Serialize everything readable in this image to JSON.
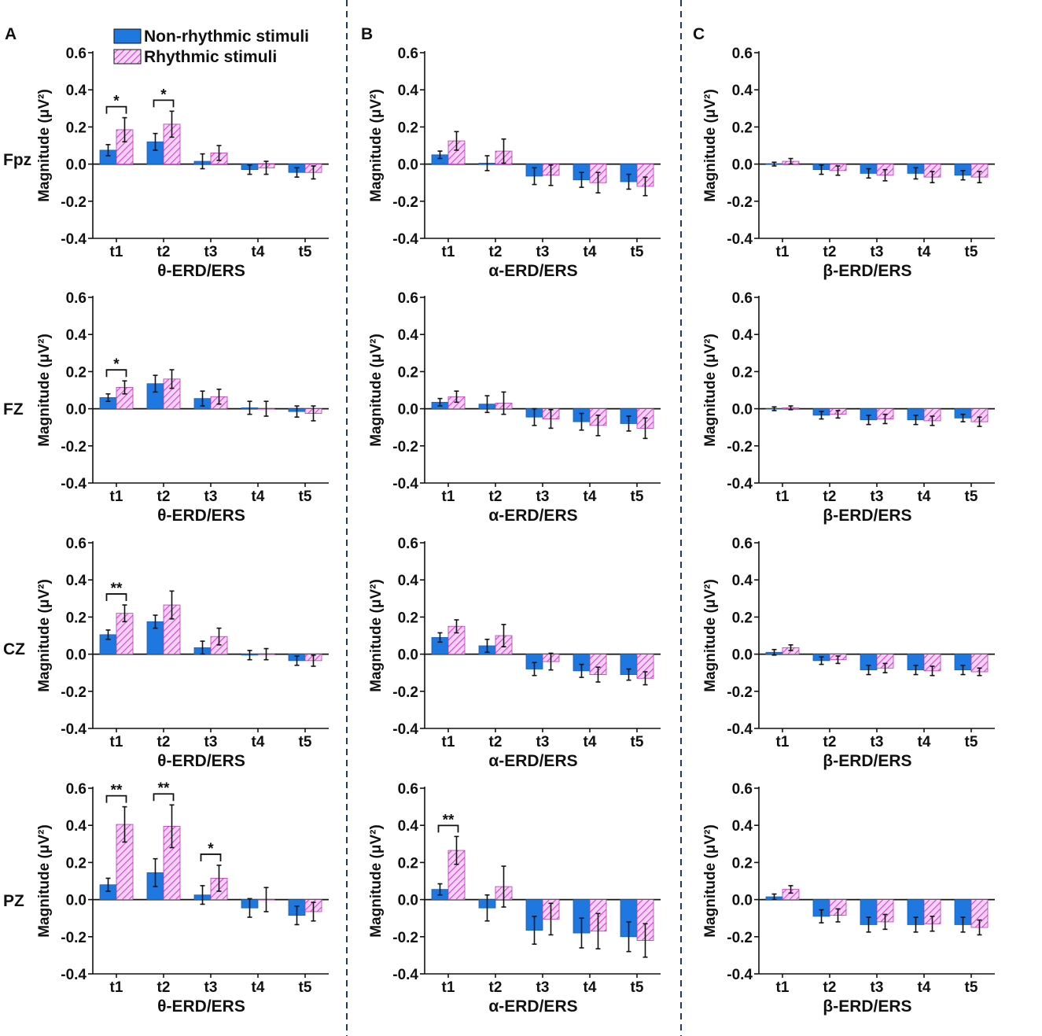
{
  "figure": {
    "panel_letters": [
      "A",
      "B",
      "C"
    ],
    "row_labels": [
      "Fpz",
      "FZ",
      "CZ",
      "PZ"
    ],
    "legend": [
      {
        "label": "Non-rhythmic stimuli",
        "pattern": "solid",
        "color": "#1f77e0"
      },
      {
        "label": "Rhythmic stimuli",
        "pattern": "hatched",
        "color": "#e05ce0"
      }
    ],
    "colors": {
      "non_rhythmic": "#1f77e0",
      "rhythmic_fill": "#f3c6f3",
      "rhythmic_hatch": "#d63fd6",
      "divider": "#1f3a66"
    }
  },
  "chart_data": [
    {
      "type": "bar",
      "panel": "A",
      "row": "Fpz",
      "xlabel": "θ-ERD/ERS",
      "ylabel": "Magnitude (μV²)",
      "ylim": [
        -0.4,
        0.6
      ],
      "yticks": [
        "0.6",
        "0.4",
        "0.2",
        "0.0",
        "-0.2",
        "-0.4"
      ],
      "categories": [
        "t1",
        "t2",
        "t3",
        "t4",
        "t5"
      ],
      "series": [
        {
          "name": "Non-rhythmic stimuli",
          "values": [
            0.075,
            0.12,
            0.015,
            -0.03,
            -0.045
          ],
          "errors": [
            0.03,
            0.045,
            0.04,
            0.025,
            0.025
          ]
        },
        {
          "name": "Rhythmic stimuli",
          "values": [
            0.185,
            0.215,
            0.06,
            -0.02,
            -0.045
          ],
          "errors": [
            0.065,
            0.07,
            0.04,
            0.035,
            0.035
          ]
        }
      ],
      "significance": [
        {
          "category": "t1",
          "label": "*"
        },
        {
          "category": "t2",
          "label": "*"
        }
      ]
    },
    {
      "type": "bar",
      "panel": "B",
      "row": "Fpz",
      "xlabel": "α-ERD/ERS",
      "ylabel": "Magnitude (μV²)",
      "ylim": [
        -0.4,
        0.6
      ],
      "yticks": [
        "0.6",
        "0.4",
        "0.2",
        "0.0",
        "-0.2",
        "-0.4"
      ],
      "categories": [
        "t1",
        "t2",
        "t3",
        "t4",
        "t5"
      ],
      "series": [
        {
          "name": "Non-rhythmic stimuli",
          "values": [
            0.05,
            0.005,
            -0.065,
            -0.085,
            -0.095
          ],
          "errors": [
            0.02,
            0.04,
            0.045,
            0.04,
            0.04
          ]
        },
        {
          "name": "Rhythmic stimuli",
          "values": [
            0.125,
            0.07,
            -0.06,
            -0.1,
            -0.12
          ],
          "errors": [
            0.05,
            0.065,
            0.055,
            0.055,
            0.05
          ]
        }
      ],
      "significance": []
    },
    {
      "type": "bar",
      "panel": "C",
      "row": "Fpz",
      "xlabel": "β-ERD/ERS",
      "ylabel": "Magnitude (μV²)",
      "ylim": [
        -0.4,
        0.6
      ],
      "yticks": [
        "0.6",
        "0.4",
        "0.2",
        "0.0",
        "-0.2",
        "-0.4"
      ],
      "categories": [
        "t1",
        "t2",
        "t3",
        "t4",
        "t5"
      ],
      "series": [
        {
          "name": "Non-rhythmic stimuli",
          "values": [
            0.0,
            -0.03,
            -0.05,
            -0.05,
            -0.06
          ],
          "errors": [
            0.01,
            0.025,
            0.025,
            0.03,
            0.025
          ]
        },
        {
          "name": "Rhythmic stimuli",
          "values": [
            0.015,
            -0.035,
            -0.06,
            -0.07,
            -0.07
          ],
          "errors": [
            0.015,
            0.025,
            0.03,
            0.03,
            0.03
          ]
        }
      ],
      "significance": []
    },
    {
      "type": "bar",
      "panel": "A",
      "row": "FZ",
      "xlabel": "θ-ERD/ERS",
      "ylabel": "Magnitude (μV²)",
      "ylim": [
        -0.4,
        0.6
      ],
      "yticks": [
        "0.6",
        "0.4",
        "0.2",
        "0.0",
        "-0.2",
        "-0.4"
      ],
      "categories": [
        "t1",
        "t2",
        "t3",
        "t4",
        "t5"
      ],
      "series": [
        {
          "name": "Non-rhythmic stimuli",
          "values": [
            0.06,
            0.135,
            0.055,
            0.005,
            -0.015
          ],
          "errors": [
            0.02,
            0.045,
            0.04,
            0.035,
            0.03
          ]
        },
        {
          "name": "Rhythmic stimuli",
          "values": [
            0.115,
            0.16,
            0.065,
            0.0,
            -0.025
          ],
          "errors": [
            0.035,
            0.05,
            0.04,
            0.04,
            0.04
          ]
        }
      ],
      "significance": [
        {
          "category": "t1",
          "label": "*"
        }
      ]
    },
    {
      "type": "bar",
      "panel": "B",
      "row": "FZ",
      "xlabel": "α-ERD/ERS",
      "ylabel": "Magnitude (μV²)",
      "ylim": [
        -0.4,
        0.6
      ],
      "yticks": [
        "0.6",
        "0.4",
        "0.2",
        "0.0",
        "-0.2",
        "-0.4"
      ],
      "categories": [
        "t1",
        "t2",
        "t3",
        "t4",
        "t5"
      ],
      "series": [
        {
          "name": "Non-rhythmic stimuli",
          "values": [
            0.035,
            0.025,
            -0.045,
            -0.07,
            -0.08
          ],
          "errors": [
            0.02,
            0.045,
            0.045,
            0.045,
            0.04
          ]
        },
        {
          "name": "Rhythmic stimuli",
          "values": [
            0.065,
            0.03,
            -0.055,
            -0.09,
            -0.105
          ],
          "errors": [
            0.03,
            0.06,
            0.05,
            0.055,
            0.055
          ]
        }
      ],
      "significance": []
    },
    {
      "type": "bar",
      "panel": "C",
      "row": "FZ",
      "xlabel": "β-ERD/ERS",
      "ylabel": "Magnitude (μV²)",
      "ylim": [
        -0.4,
        0.6
      ],
      "yticks": [
        "0.6",
        "0.4",
        "0.2",
        "0.0",
        "-0.2",
        "-0.4"
      ],
      "categories": [
        "t1",
        "t2",
        "t3",
        "t4",
        "t5"
      ],
      "series": [
        {
          "name": "Non-rhythmic stimuli",
          "values": [
            0.0,
            -0.035,
            -0.06,
            -0.06,
            -0.05
          ],
          "errors": [
            0.01,
            0.02,
            0.025,
            0.025,
            0.02
          ]
        },
        {
          "name": "Rhythmic stimuli",
          "values": [
            0.005,
            -0.03,
            -0.055,
            -0.065,
            -0.07
          ],
          "errors": [
            0.01,
            0.02,
            0.025,
            0.025,
            0.025
          ]
        }
      ],
      "significance": []
    },
    {
      "type": "bar",
      "panel": "A",
      "row": "CZ",
      "xlabel": "θ-ERD/ERS",
      "ylabel": "Magnitude (μV²)",
      "ylim": [
        -0.4,
        0.6
      ],
      "yticks": [
        "0.6",
        "0.4",
        "0.2",
        "0.0",
        "-0.2",
        "-0.4"
      ],
      "categories": [
        "t1",
        "t2",
        "t3",
        "t4",
        "t5"
      ],
      "series": [
        {
          "name": "Non-rhythmic stimuli",
          "values": [
            0.105,
            0.175,
            0.035,
            -0.005,
            -0.035
          ],
          "errors": [
            0.025,
            0.035,
            0.035,
            0.025,
            0.025
          ]
        },
        {
          "name": "Rhythmic stimuli",
          "values": [
            0.22,
            0.265,
            0.095,
            0.0,
            -0.035
          ],
          "errors": [
            0.045,
            0.075,
            0.045,
            0.03,
            0.03
          ]
        }
      ],
      "significance": [
        {
          "category": "t1",
          "label": "**"
        }
      ]
    },
    {
      "type": "bar",
      "panel": "B",
      "row": "CZ",
      "xlabel": "α-ERD/ERS",
      "ylabel": "Magnitude (μV²)",
      "ylim": [
        -0.4,
        0.6
      ],
      "yticks": [
        "0.6",
        "0.4",
        "0.2",
        "0.0",
        "-0.2",
        "-0.4"
      ],
      "categories": [
        "t1",
        "t2",
        "t3",
        "t4",
        "t5"
      ],
      "series": [
        {
          "name": "Non-rhythmic stimuli",
          "values": [
            0.09,
            0.045,
            -0.08,
            -0.09,
            -0.11
          ],
          "errors": [
            0.025,
            0.035,
            0.035,
            0.035,
            0.03
          ]
        },
        {
          "name": "Rhythmic stimuli",
          "values": [
            0.15,
            0.1,
            -0.04,
            -0.11,
            -0.13
          ],
          "errors": [
            0.035,
            0.06,
            0.045,
            0.04,
            0.035
          ]
        }
      ],
      "significance": []
    },
    {
      "type": "bar",
      "panel": "C",
      "row": "CZ",
      "xlabel": "β-ERD/ERS",
      "ylabel": "Magnitude (μV²)",
      "ylim": [
        -0.4,
        0.6
      ],
      "yticks": [
        "0.6",
        "0.4",
        "0.2",
        "0.0",
        "-0.2",
        "-0.4"
      ],
      "categories": [
        "t1",
        "t2",
        "t3",
        "t4",
        "t5"
      ],
      "series": [
        {
          "name": "Non-rhythmic stimuli",
          "values": [
            0.01,
            -0.035,
            -0.085,
            -0.085,
            -0.085
          ],
          "errors": [
            0.015,
            0.02,
            0.025,
            0.025,
            0.025
          ]
        },
        {
          "name": "Rhythmic stimuli",
          "values": [
            0.035,
            -0.03,
            -0.075,
            -0.09,
            -0.095
          ],
          "errors": [
            0.015,
            0.02,
            0.025,
            0.025,
            0.02
          ]
        }
      ],
      "significance": []
    },
    {
      "type": "bar",
      "panel": "A",
      "row": "PZ",
      "xlabel": "θ-ERD/ERS",
      "ylabel": "Magnitude (μV²)",
      "ylim": [
        -0.4,
        0.6
      ],
      "yticks": [
        "0.6",
        "0.4",
        "0.2",
        "0.0",
        "-0.2",
        "-0.4"
      ],
      "categories": [
        "t1",
        "t2",
        "t3",
        "t4",
        "t5"
      ],
      "series": [
        {
          "name": "Non-rhythmic stimuli",
          "values": [
            0.08,
            0.145,
            0.025,
            -0.045,
            -0.085
          ],
          "errors": [
            0.035,
            0.075,
            0.05,
            0.05,
            0.05
          ]
        },
        {
          "name": "Rhythmic stimuli",
          "values": [
            0.405,
            0.395,
            0.115,
            0.0,
            -0.065
          ],
          "errors": [
            0.095,
            0.115,
            0.07,
            0.065,
            0.05
          ]
        }
      ],
      "significance": [
        {
          "category": "t1",
          "label": "**"
        },
        {
          "category": "t2",
          "label": "**"
        },
        {
          "category": "t3",
          "label": "*"
        }
      ]
    },
    {
      "type": "bar",
      "panel": "B",
      "row": "PZ",
      "xlabel": "α-ERD/ERS",
      "ylabel": "Magnitude (μV²)",
      "ylim": [
        -0.4,
        0.6
      ],
      "yticks": [
        "0.6",
        "0.4",
        "0.2",
        "0.0",
        "-0.2",
        "-0.4"
      ],
      "categories": [
        "t1",
        "t2",
        "t3",
        "t4",
        "t5"
      ],
      "series": [
        {
          "name": "Non-rhythmic stimuli",
          "values": [
            0.055,
            -0.045,
            -0.165,
            -0.18,
            -0.2
          ],
          "errors": [
            0.03,
            0.07,
            0.075,
            0.08,
            0.08
          ]
        },
        {
          "name": "Rhythmic stimuli",
          "values": [
            0.265,
            0.07,
            -0.105,
            -0.17,
            -0.22
          ],
          "errors": [
            0.075,
            0.11,
            0.085,
            0.095,
            0.09
          ]
        }
      ],
      "significance": [
        {
          "category": "t1",
          "label": "**"
        }
      ]
    },
    {
      "type": "bar",
      "panel": "C",
      "row": "PZ",
      "xlabel": "β-ERD/ERS",
      "ylabel": "Magnitude (μV²)",
      "ylim": [
        -0.4,
        0.6
      ],
      "yticks": [
        "0.6",
        "0.4",
        "0.2",
        "0.0",
        "-0.2",
        "-0.4"
      ],
      "categories": [
        "t1",
        "t2",
        "t3",
        "t4",
        "t5"
      ],
      "series": [
        {
          "name": "Non-rhythmic stimuli",
          "values": [
            0.015,
            -0.09,
            -0.135,
            -0.135,
            -0.135
          ],
          "errors": [
            0.015,
            0.035,
            0.04,
            0.04,
            0.04
          ]
        },
        {
          "name": "Rhythmic stimuli",
          "values": [
            0.055,
            -0.085,
            -0.12,
            -0.13,
            -0.15
          ],
          "errors": [
            0.02,
            0.035,
            0.04,
            0.04,
            0.04
          ]
        }
      ],
      "significance": []
    }
  ]
}
